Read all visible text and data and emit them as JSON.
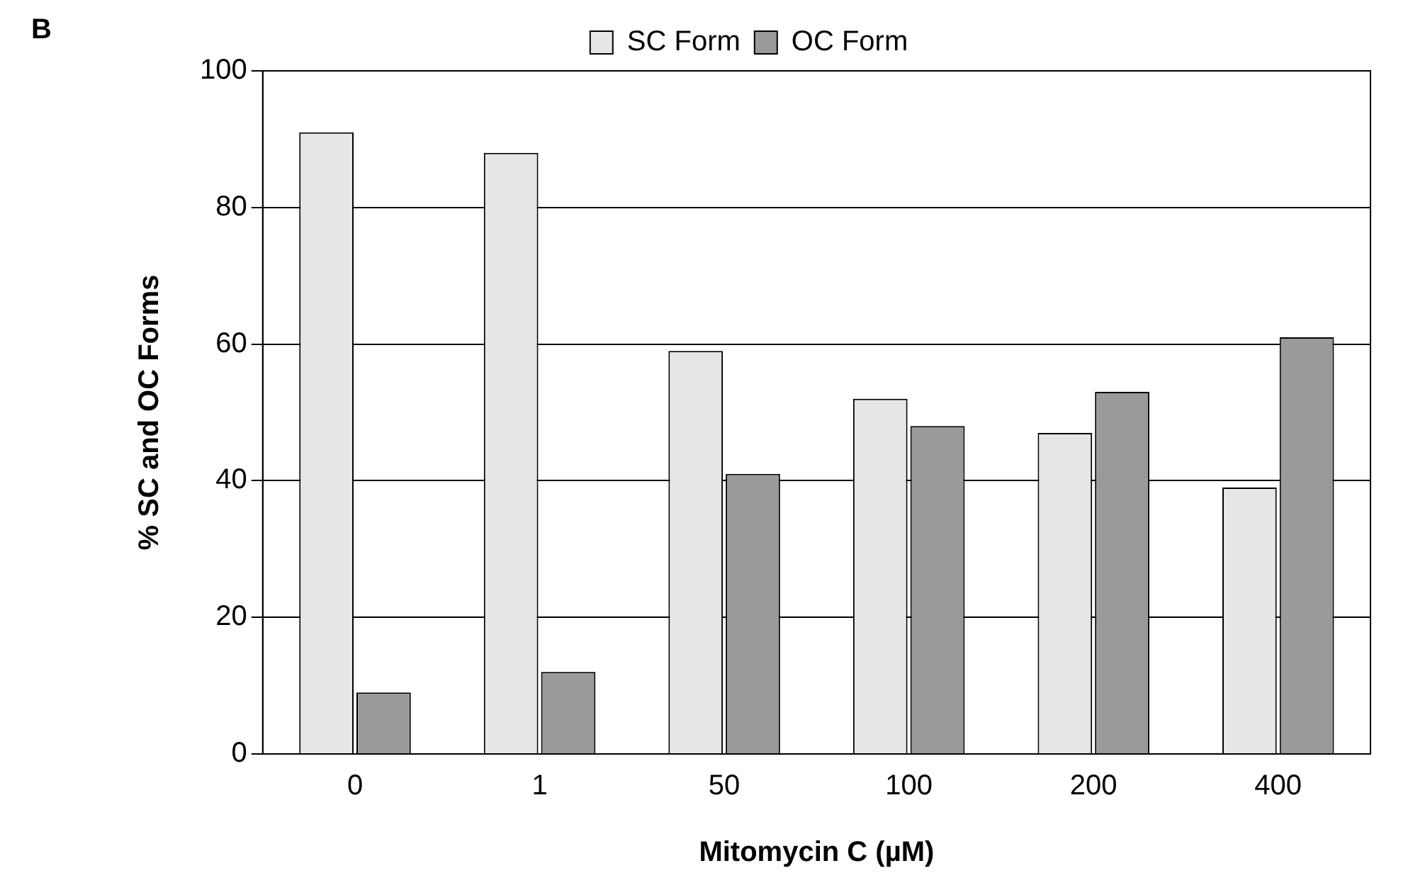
{
  "chart_data": {
    "type": "bar",
    "xlabel": "Mitomycin C (µM)",
    "ylabel": "% SC and OC Forms",
    "annotations": [
      "B"
    ],
    "categories": [
      "0",
      "1",
      "50",
      "100",
      "200",
      "400"
    ],
    "series": [
      {
        "name": "SC Form",
        "color": "#e6e6e6",
        "values": [
          91,
          88,
          59,
          52,
          47,
          39
        ]
      },
      {
        "name": "OC Form",
        "color": "#9a9a9a",
        "values": [
          9,
          12,
          41,
          48,
          53,
          61
        ]
      }
    ],
    "ylim": [
      0,
      100
    ],
    "yticks": [
      0,
      20,
      40,
      60,
      80,
      100
    ],
    "grid": "y",
    "legend": "top"
  }
}
